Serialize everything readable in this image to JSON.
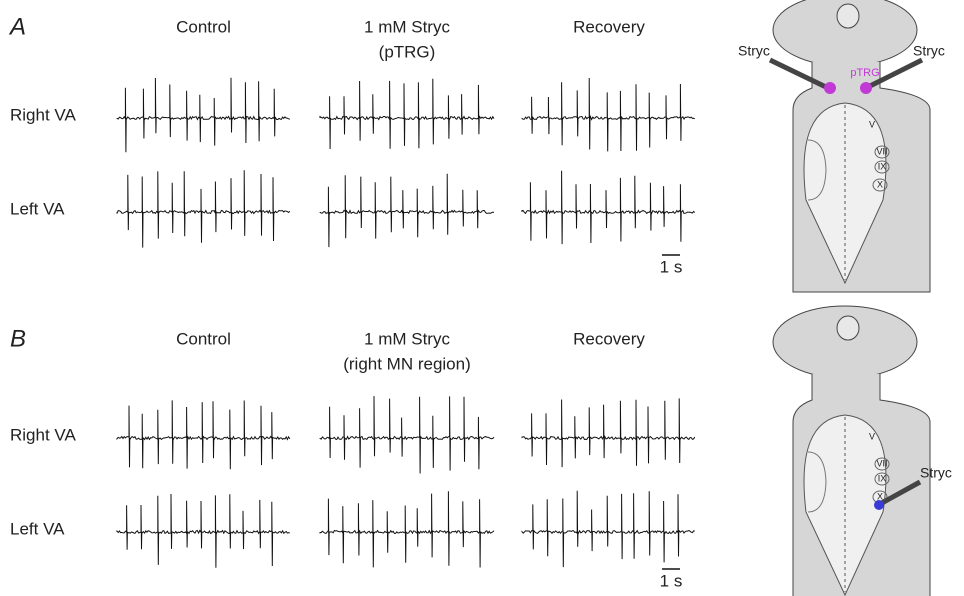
{
  "panels": [
    {
      "label": "A",
      "columns": [
        {
          "title": "Control"
        },
        {
          "title": "1 mM Stryc",
          "subtitle": "(pTRG)"
        },
        {
          "title": "Recovery"
        }
      ],
      "rows": [
        "Right VA",
        "Left VA"
      ],
      "scale_bar": "1 s",
      "diagram": {
        "regions": [
          "V",
          "VII",
          "IX",
          "X"
        ],
        "drug_labels": [
          "Stryc",
          "Stryc"
        ],
        "site": "pTRG"
      }
    },
    {
      "label": "B",
      "columns": [
        {
          "title": "Control"
        },
        {
          "title": "1 mM Stryc",
          "subtitle": "(right MN region)"
        },
        {
          "title": "Recovery"
        }
      ],
      "rows": [
        "Right VA",
        "Left VA"
      ],
      "scale_bar": "1 s",
      "diagram": {
        "regions": [
          "V",
          "VII",
          "IX",
          "X"
        ],
        "drug_labels": [
          "Stryc"
        ]
      }
    }
  ]
}
